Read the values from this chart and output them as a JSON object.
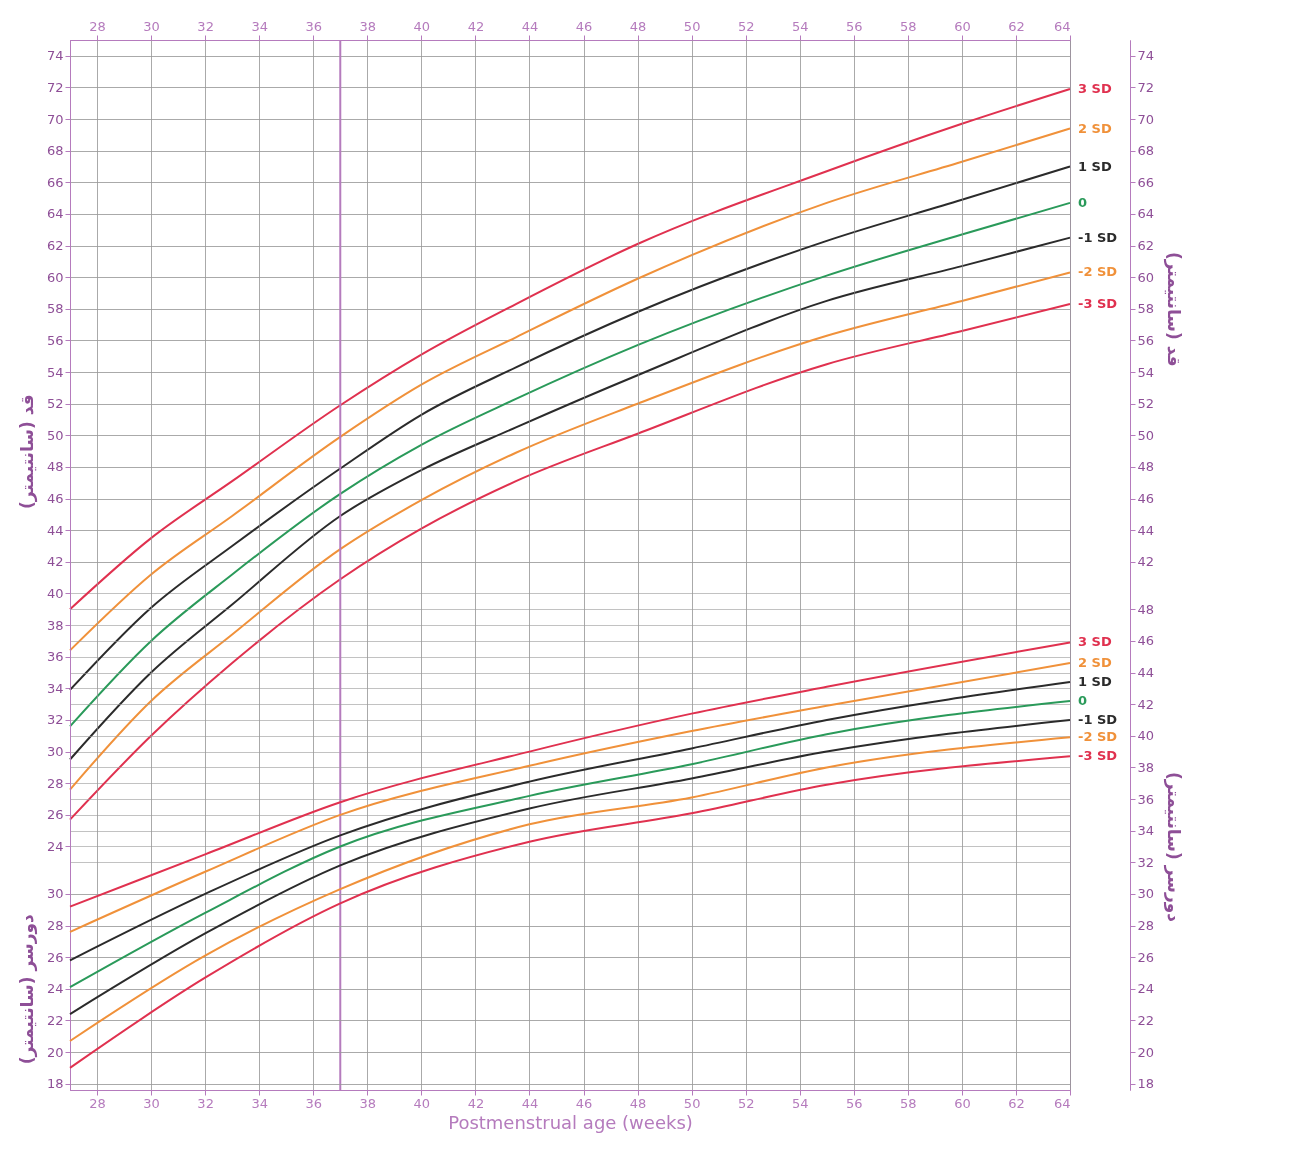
{
  "chart_data": [
    {
      "type": "line",
      "ylabel": "قد (سانتیمتر)",
      "y2label": "قد (سانتیمتر)",
      "grid": true,
      "xlim": [
        27,
        64
      ],
      "x2lim": [
        27,
        64
      ],
      "x2ticks": [
        28,
        30,
        32,
        34,
        36,
        38,
        40,
        42,
        44,
        46,
        48,
        50,
        52,
        54,
        56,
        58,
        60,
        62,
        64
      ],
      "ylim": [
        8.6,
        75
      ],
      "yticks": [
        24,
        26,
        28,
        30,
        32,
        34,
        36,
        38,
        40,
        42,
        44,
        46,
        48,
        50,
        52,
        54,
        56,
        58,
        60,
        62,
        64,
        66,
        68,
        70,
        72,
        74
      ],
      "y2lim": [
        8.6,
        75
      ],
      "y2ticks": [
        42,
        44,
        46,
        48,
        50,
        52,
        54,
        56,
        58,
        60,
        62,
        64,
        66,
        68,
        70,
        72,
        74
      ],
      "ref_lines": [
        {
          "axis": "x",
          "value": 37,
          "color": "#b57bbd"
        }
      ],
      "x": [
        27,
        30,
        33,
        37,
        40,
        43.5,
        48,
        55,
        60,
        64
      ],
      "series": [
        {
          "name": "3 SD",
          "color": "#e0314f",
          "values": [
            39.0,
            43.5,
            47.1,
            51.9,
            55.1,
            58.3,
            62.1,
            66.7,
            69.7,
            71.9
          ]
        },
        {
          "name": "2 SD",
          "color": "#f0913a",
          "values": [
            36.4,
            41.2,
            44.9,
            49.9,
            53.2,
            56.2,
            59.9,
            64.7,
            67.3,
            69.4
          ]
        },
        {
          "name": "1 SD",
          "color": "#2b2b2b",
          "values": [
            33.9,
            39.1,
            43.0,
            47.9,
            51.3,
            54.3,
            57.8,
            62.3,
            64.9,
            67.0
          ]
        },
        {
          "name": "0",
          "color": "#2a9a5a",
          "values": [
            31.6,
            37.0,
            41.2,
            46.3,
            49.4,
            52.3,
            55.7,
            60.1,
            62.7,
            64.7
          ]
        },
        {
          "name": "-1 SD",
          "color": "#2b2b2b",
          "values": [
            29.5,
            35.0,
            39.3,
            44.9,
            47.8,
            50.5,
            53.8,
            58.5,
            60.7,
            62.5
          ]
        },
        {
          "name": "-2 SD",
          "color": "#f0913a",
          "values": [
            27.6,
            33.2,
            37.4,
            42.8,
            45.9,
            48.9,
            52.0,
            56.3,
            58.5,
            60.3
          ]
        },
        {
          "name": "-3 SD",
          "color": "#e0314f",
          "values": [
            25.7,
            31.0,
            35.6,
            40.9,
            44.1,
            47.1,
            50.1,
            54.5,
            56.6,
            58.3
          ]
        }
      ]
    },
    {
      "type": "line",
      "xlabel": "Postmenstrual age (weeks)",
      "ylabel": "دورسر (سانتیمتر)",
      "y2label": "دورسر (سانتیمتر)",
      "grid": true,
      "xlim": [
        27,
        64
      ],
      "xticks": [
        28,
        30,
        32,
        34,
        36,
        38,
        40,
        42,
        44,
        46,
        48,
        50,
        52,
        54,
        56,
        58,
        60,
        62,
        64
      ],
      "ylim": [
        17.6,
        84
      ],
      "yticks": [
        18,
        20,
        22,
        24,
        26,
        28,
        30
      ],
      "y2lim": [
        17.6,
        84
      ],
      "y2ticks": [
        18,
        20,
        22,
        24,
        26,
        28,
        30,
        32,
        34,
        36,
        38,
        40,
        42,
        44,
        46,
        48
      ],
      "x": [
        27,
        32,
        37,
        44,
        50,
        55,
        64
      ],
      "series": [
        {
          "name": "3 SD",
          "color": "#e0314f",
          "values": [
            29.2,
            32.5,
            35.8,
            39.0,
            41.4,
            43.1,
            45.9
          ]
        },
        {
          "name": "2 SD",
          "color": "#f0913a",
          "values": [
            27.6,
            31.4,
            35.0,
            38.1,
            40.3,
            41.9,
            44.6
          ]
        },
        {
          "name": "1 SD",
          "color": "#2b2b2b",
          "values": [
            25.8,
            30.0,
            33.7,
            37.1,
            39.2,
            41.0,
            43.4
          ]
        },
        {
          "name": "0",
          "color": "#2a9a5a",
          "values": [
            24.1,
            28.8,
            33.0,
            36.2,
            38.2,
            40.1,
            42.2
          ]
        },
        {
          "name": "-1 SD",
          "color": "#2b2b2b",
          "values": [
            22.4,
            27.5,
            31.8,
            35.4,
            37.3,
            39.0,
            41.0
          ]
        },
        {
          "name": "-2 SD",
          "color": "#f0913a",
          "values": [
            20.7,
            26.1,
            30.3,
            34.4,
            36.1,
            38.0,
            39.9
          ]
        },
        {
          "name": "-3 SD",
          "color": "#e0314f",
          "values": [
            19.0,
            24.7,
            29.4,
            33.3,
            35.1,
            36.9,
            38.7
          ]
        }
      ]
    }
  ]
}
